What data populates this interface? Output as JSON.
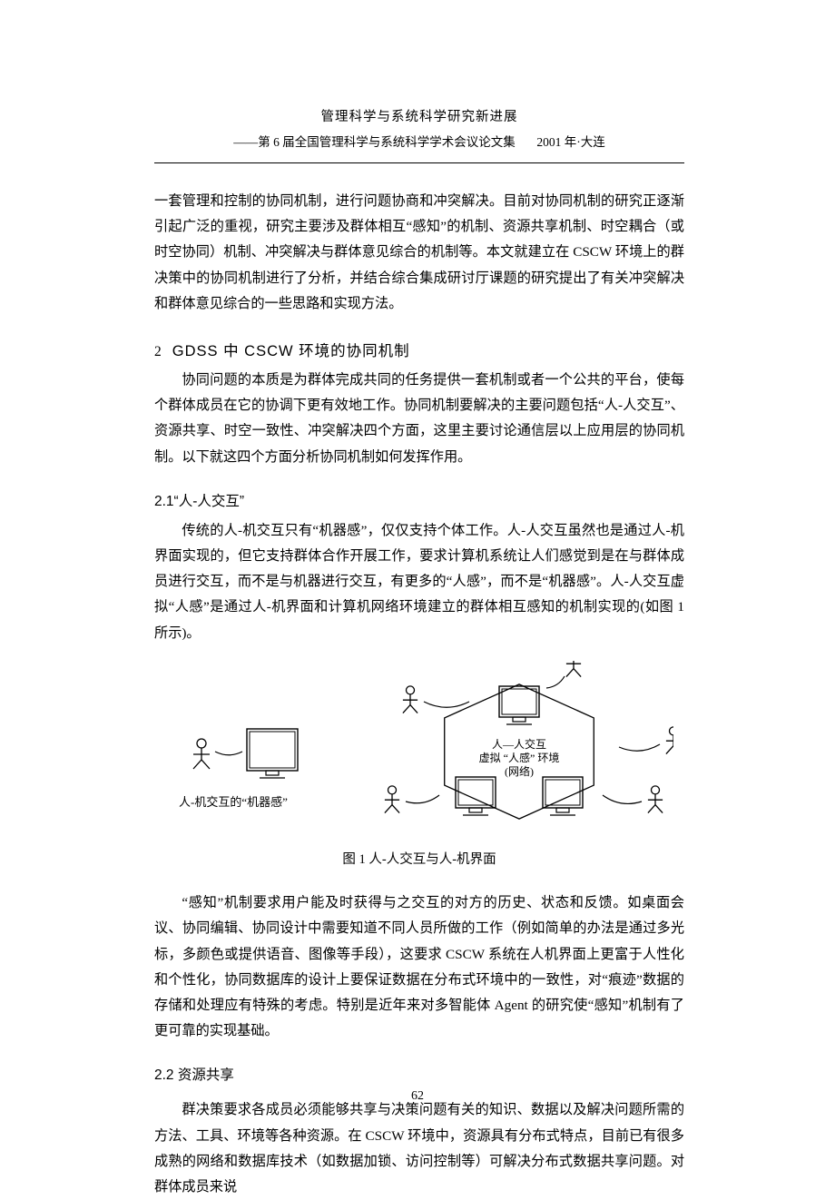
{
  "header": {
    "title": "管理科学与系统科学研究新进展",
    "subtitle_left": "——第 6 届全国管理科学与系统科学学术会议论文集",
    "subtitle_right": "2001 年·大连"
  },
  "body": {
    "intro_para": "一套管理和控制的协同机制，进行问题协商和冲突解决。目前对协同机制的研究正逐渐引起广泛的重视，研究主要涉及群体相互“感知”的机制、资源共享机制、时空耦合（或时空协同）机制、冲突解决与群体意见综合的机制等。本文就建立在 CSCW 环境上的群决策中的协同机制进行了分析，并结合综合集成研讨厅课题的研究提出了有关冲突解决和群体意见综合的一些思路和实现方法。",
    "sec2": {
      "num": "2",
      "title": "GDSS 中 CSCW 环境的协同机制",
      "para": "协同问题的本质是为群体完成共同的任务提供一套机制或者一个公共的平台，使每个群体成员在它的协调下更有效地工作。协同机制要解决的主要问题包括“人-人交互”、资源共享、时空一致性、冲突解决四个方面，这里主要讨论通信层以上应用层的协同机制。以下就这四个方面分析协同机制如何发挥作用。"
    },
    "sec21": {
      "title": "2.1“人-人交互”",
      "para": "传统的人-机交互只有“机器感”，仅仅支持个体工作。人-人交互虽然也是通过人-机界面实现的，但它支持群体合作开展工作，要求计算机系统让人们感觉到是在与群体成员进行交互，而不是与机器进行交互，有更多的“人感”，而不是“机器感”。人-人交互虚拟“人感”是通过人-机界面和计算机网络环境建立的群体相互感知的机制实现的(如图 1 所示)。"
    },
    "figure": {
      "caption": "图 1   人-人交互与人-机界面",
      "left_label": "人-机交互的“机器感”",
      "center_line1": "人—人交互",
      "center_line2": "虚拟 “人感” 环境",
      "center_line3": "(网络)",
      "stroke": "#000000",
      "fill_bg": "#ffffff",
      "font_size_label": 13,
      "font_size_center": 12
    },
    "after_fig_para": "“感知”机制要求用户能及时获得与之交互的对方的历史、状态和反馈。如桌面会议、协同编辑、协同设计中需要知道不同人员所做的工作（例如简单的办法是通过多光标，多颜色或提供语音、图像等手段），这要求 CSCW 系统在人机界面上更富于人性化和个性化，协同数据库的设计上要保证数据在分布式环境中的一致性，对“痕迹”数据的存储和处理应有特殊的考虑。特别是近年来对多智能体 Agent 的研究使“感知”机制有了更可靠的实现基础。",
    "sec22": {
      "title": "2.2 资源共享",
      "para": "群决策要求各成员必须能够共享与决策问题有关的知识、数据以及解决问题所需的方法、工具、环境等各种资源。在 CSCW 环境中，资源具有分布式特点，目前已有很多成熟的网络和数据库技术（如数据加锁、访问控制等）可解决分布式数据共享问题。对群体成员来说"
    }
  },
  "page_number": "62"
}
